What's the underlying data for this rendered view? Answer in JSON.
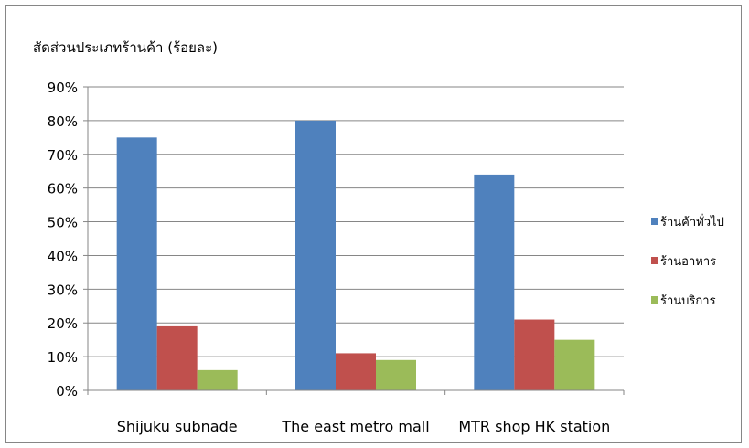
{
  "chart_data": {
    "type": "bar",
    "title": "สัดส่วนประเภทร้านค้า (ร้อยละ)",
    "categories": [
      "Shijuku subnade",
      "The east metro mall",
      "MTR shop HK station"
    ],
    "series": [
      {
        "name": "ร้านค้าทั่วไป",
        "color": "#4F81BD",
        "values": [
          75,
          80,
          64
        ]
      },
      {
        "name": "ร้านอาหาร",
        "color": "#C0504D",
        "values": [
          19,
          11,
          21
        ]
      },
      {
        "name": "ร้านบริการ",
        "color": "#9BBB59",
        "values": [
          6,
          9,
          15
        ]
      }
    ],
    "ylim": [
      0,
      90
    ],
    "yticks": [
      0,
      10,
      20,
      30,
      40,
      50,
      60,
      70,
      80,
      90
    ],
    "ytick_labels": [
      "0%",
      "10%",
      "20%",
      "30%",
      "40%",
      "50%",
      "60%",
      "70%",
      "80%",
      "90%"
    ],
    "grid": true,
    "legend": "right"
  }
}
